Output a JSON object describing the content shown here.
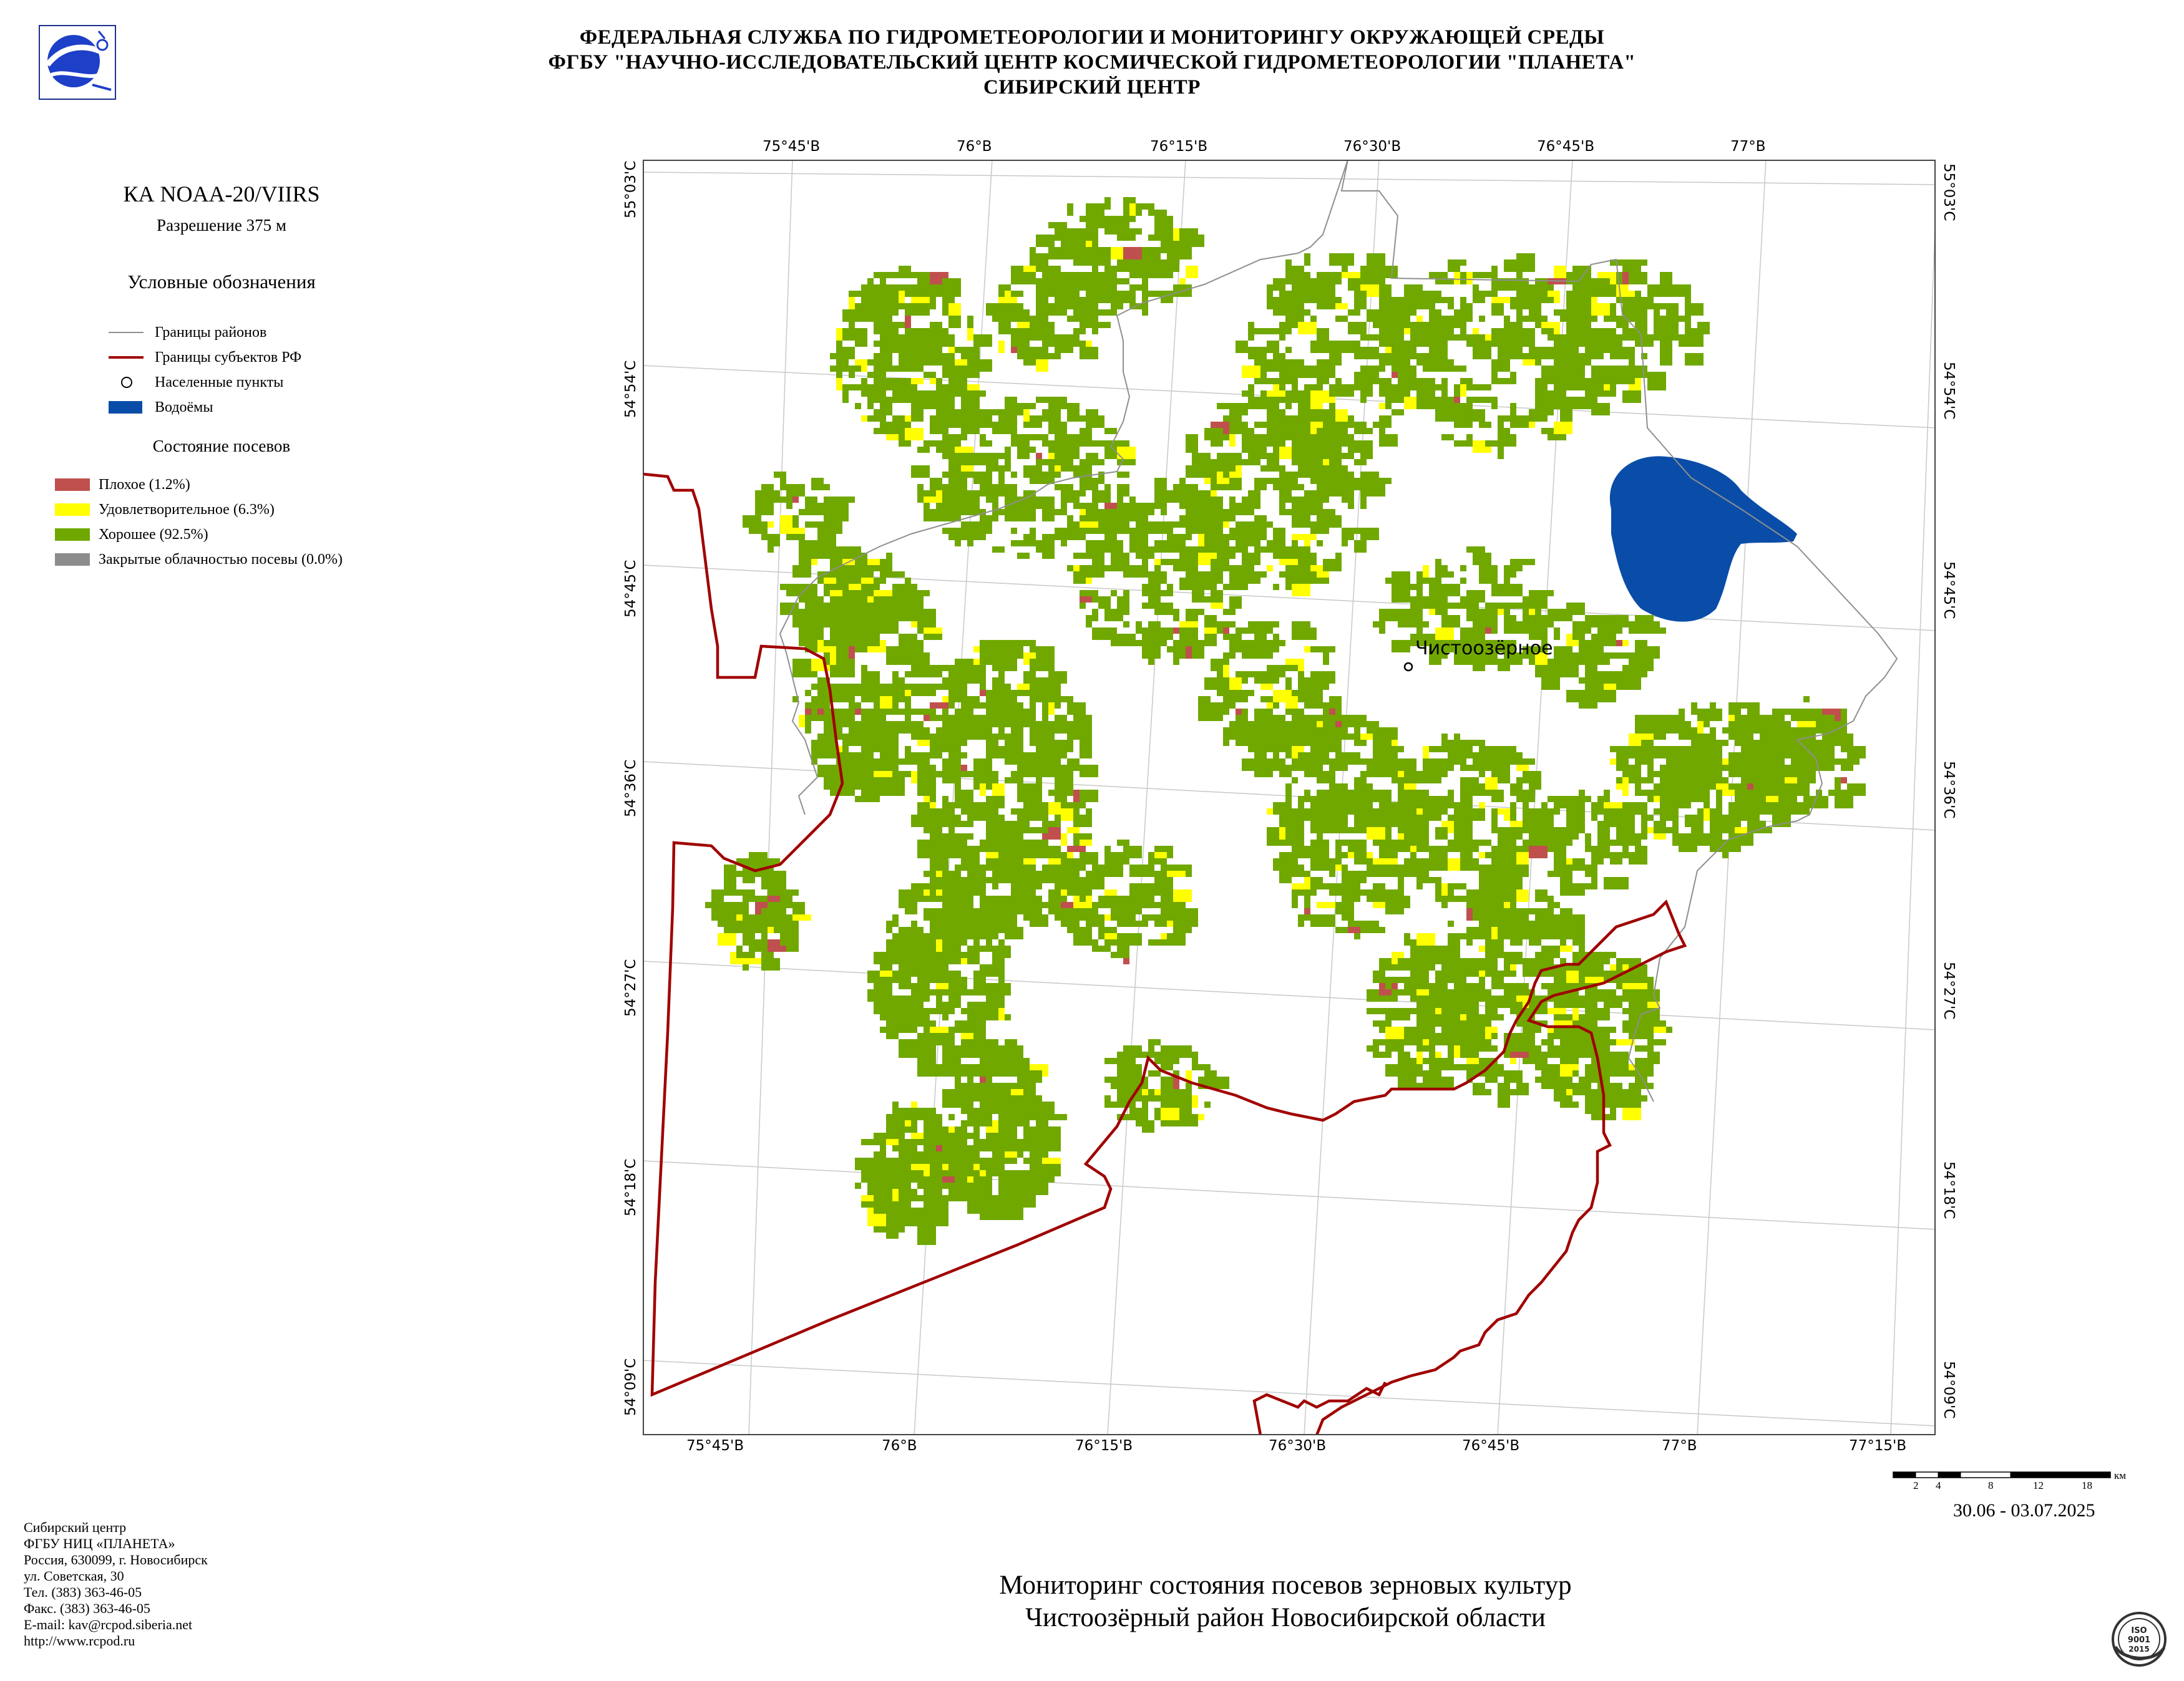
{
  "header": {
    "line1": "ФЕДЕРАЛЬНАЯ СЛУЖБА ПО ГИДРОМЕТЕОРОЛОГИИ И МОНИТОРИНГУ ОКРУЖАЮЩЕЙ СРЕДЫ",
    "line2": "ФГБУ \"НАУЧНО-ИССЛЕДОВАТЕЛЬСКИЙ ЦЕНТР КОСМИЧЕСКОЙ ГИДРОМЕТЕОРОЛОГИИ \"ПЛАНЕТА\"",
    "line3": "СИБИРСКИЙ ЦЕНТР"
  },
  "legend": {
    "satellite": "КА NOAA-20/VIIRS",
    "resolution": "Разрешение 375 м",
    "title": "Условные обозначения",
    "items": [
      {
        "label": "Границы районов",
        "symbol": "district-line"
      },
      {
        "label": "Границы субъектов РФ",
        "symbol": "region-line"
      },
      {
        "label": "Населенные пункты",
        "symbol": "settlement-circle"
      },
      {
        "label": "Водоёмы",
        "symbol": "water-swatch",
        "color": "#0a4da8"
      }
    ],
    "crop_title": "Состояние посевов",
    "crop_states": [
      {
        "label": "Плохое (1.2%)",
        "color": "#c0504d",
        "percent": 1.2
      },
      {
        "label": "Удовлетворительное (6.3%)",
        "color": "#ffff00",
        "percent": 6.3
      },
      {
        "label": "Хорошее (92.5%)",
        "color": "#70a800",
        "percent": 92.5
      },
      {
        "label": "Закрытые облачностью посевы (0.0%)",
        "color": "#8c8c8c",
        "percent": 0.0
      }
    ]
  },
  "map": {
    "settlement": "Чистоозёрное",
    "colors": {
      "region_border": "#a00000",
      "district_border": "#8f8f8f",
      "water": "#0a4da8",
      "graticule": "#c8c8c8"
    },
    "top_lon_labels": [
      "75°45'В",
      "76°В",
      "76°15'В",
      "76°30'В",
      "76°45'В",
      "77°В"
    ],
    "bottom_lon_labels": [
      "75°45'В",
      "76°В",
      "76°15'В",
      "76°30'В",
      "76°45'В",
      "77°В",
      "77°15'В"
    ],
    "left_lat_labels": [
      "55°03'С",
      "54°54'С",
      "54°45'С",
      "54°36'С",
      "54°27'С",
      "54°18'С",
      "54°09'С"
    ],
    "right_lat_labels": [
      "55°03'С",
      "54°54'С",
      "54°45'С",
      "54°36'С",
      "54°27'С",
      "54°18'С",
      "54°09'С"
    ]
  },
  "scale": {
    "ticks": [
      "2",
      "4",
      "8",
      "12",
      "18"
    ],
    "unit": "км"
  },
  "date": "30.06 - 03.07.2025",
  "footer": {
    "line1": "Сибирский центр",
    "line2": "ФГБУ НИЦ «ПЛАНЕТА»",
    "line3": "Россия, 630099, г. Новосибирск",
    "line4": "ул. Советская, 30",
    "line5": "Тел. (383) 363-46-05",
    "line6": "Факс. (383) 363-46-05",
    "email": "E-mail: kav@rcpod.siberia.net",
    "url": "http://www.rcpod.ru"
  },
  "title": {
    "line1": "Мониторинг состояния посевов зерновых культур",
    "line2": "Чистоозёрный район Новосибирской области"
  },
  "iso_badge": {
    "line1": "ISO",
    "line2": "9001",
    "line3": "2015"
  }
}
